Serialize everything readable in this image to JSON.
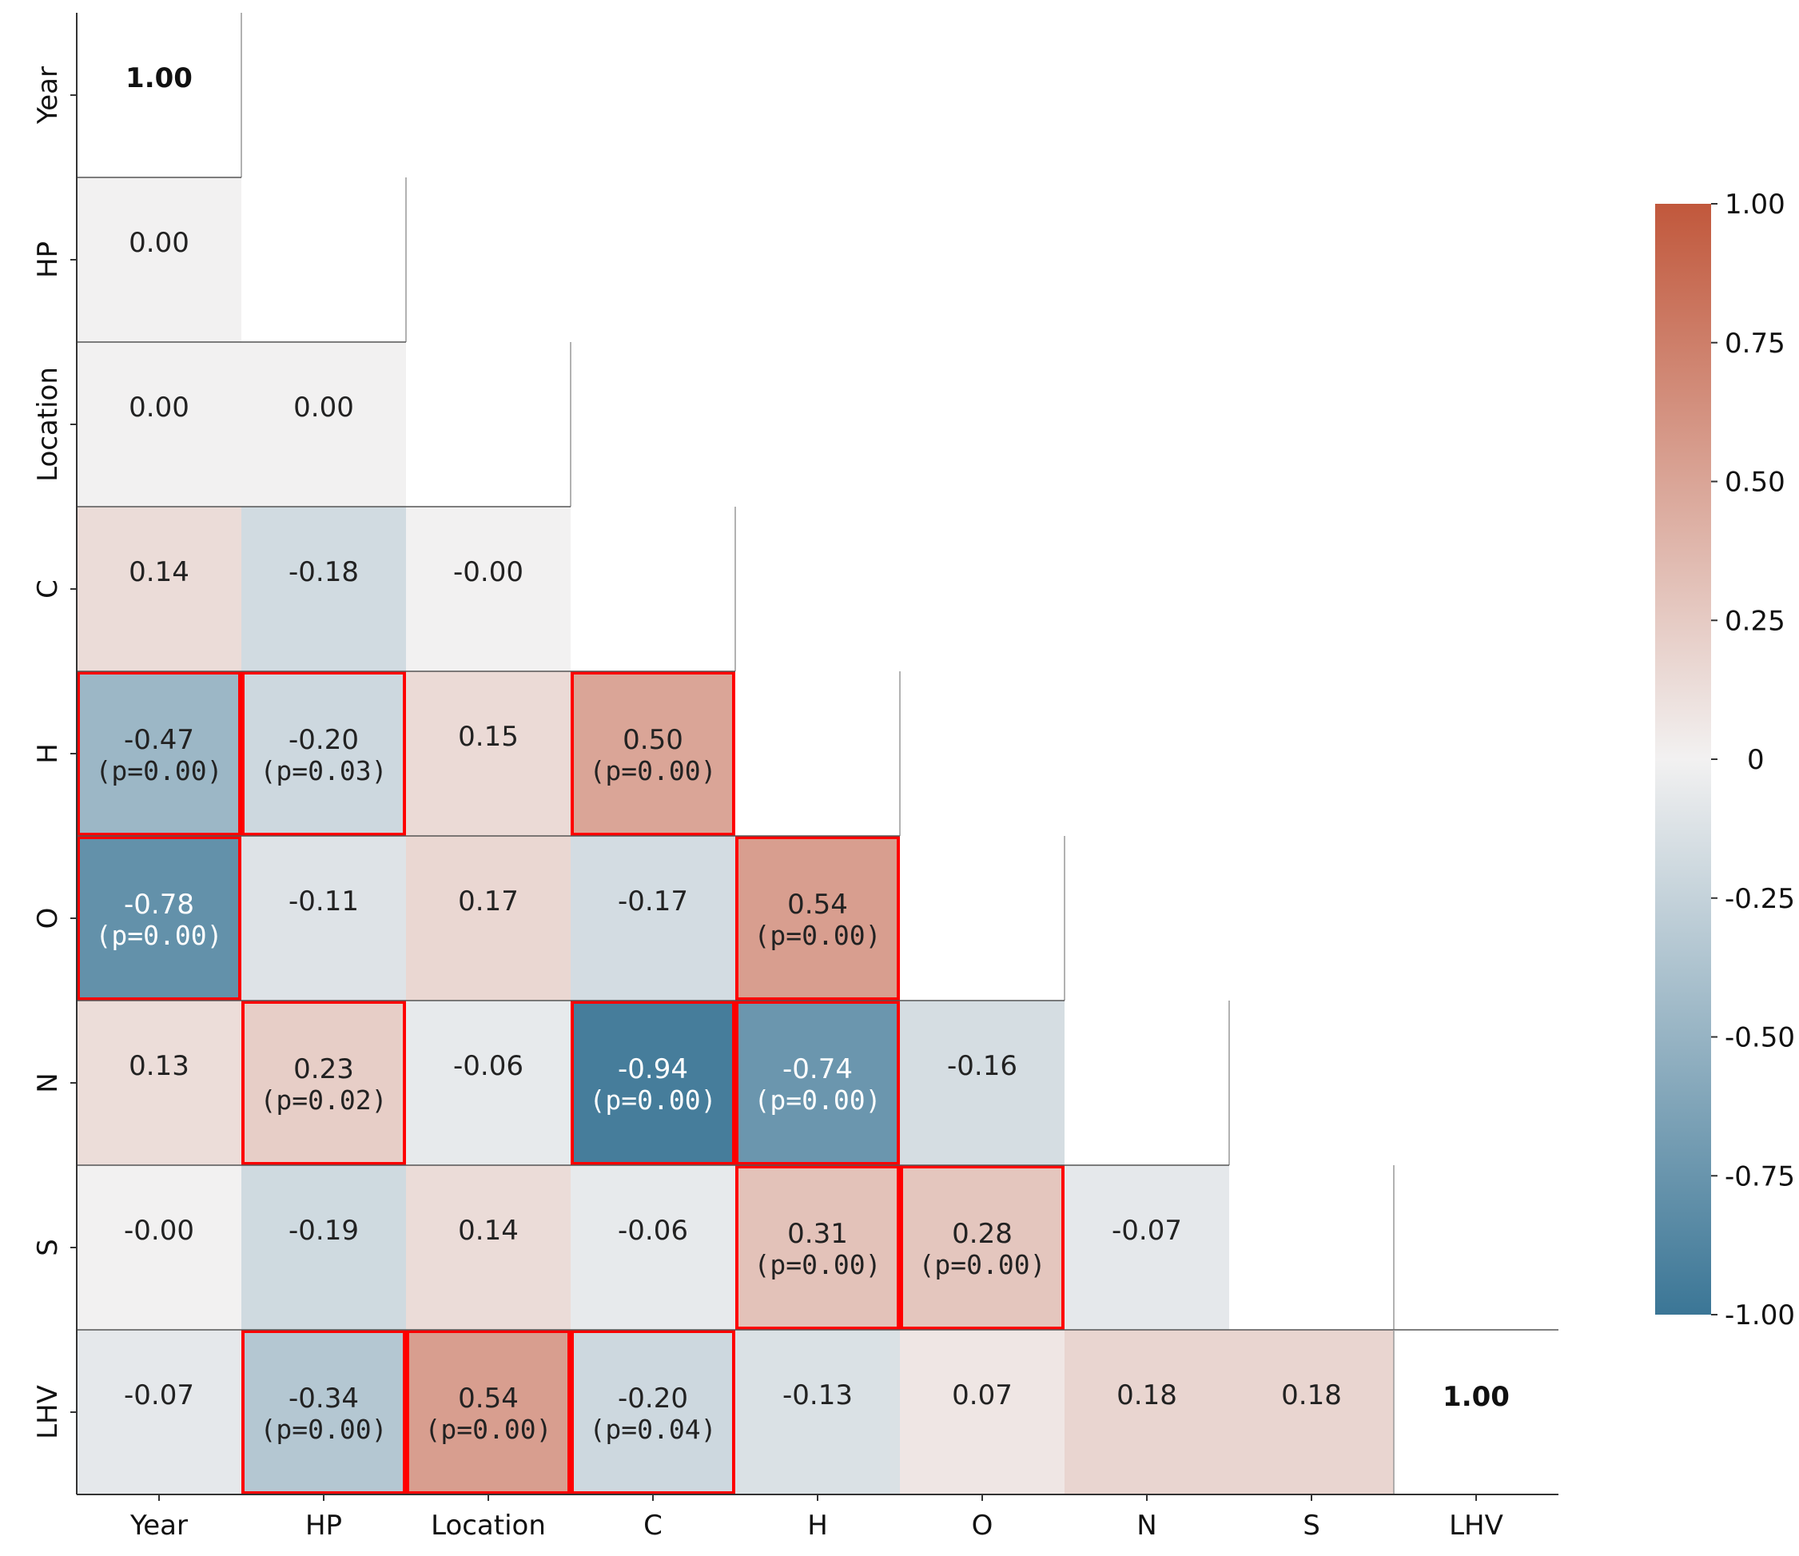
{
  "chart_data": {
    "type": "heatmap",
    "title": "",
    "variables": [
      "Year",
      "HP",
      "Location",
      "C",
      "H",
      "O",
      "N",
      "S",
      "LHV"
    ],
    "cells": [
      {
        "row": "Year",
        "col": "Year",
        "value": 1.0,
        "label": "1.00",
        "p": null,
        "highlighted": false
      },
      {
        "row": "HP",
        "col": "Year",
        "value": 0.0,
        "label": "0.00",
        "p": null,
        "highlighted": false
      },
      {
        "row": "Location",
        "col": "Year",
        "value": 0.0,
        "label": "0.00",
        "p": null,
        "highlighted": false
      },
      {
        "row": "Location",
        "col": "HP",
        "value": 0.0,
        "label": "0.00",
        "p": null,
        "highlighted": false
      },
      {
        "row": "C",
        "col": "Year",
        "value": 0.14,
        "label": "0.14",
        "p": null,
        "highlighted": false
      },
      {
        "row": "C",
        "col": "HP",
        "value": -0.18,
        "label": "-0.18",
        "p": null,
        "highlighted": false
      },
      {
        "row": "C",
        "col": "Location",
        "value": -0.0,
        "label": "-0.00",
        "p": null,
        "highlighted": false
      },
      {
        "row": "H",
        "col": "Year",
        "value": -0.47,
        "label": "-0.47",
        "p": "(p=0.00)",
        "highlighted": true
      },
      {
        "row": "H",
        "col": "HP",
        "value": -0.2,
        "label": "-0.20",
        "p": "(p=0.03)",
        "highlighted": true
      },
      {
        "row": "H",
        "col": "Location",
        "value": 0.15,
        "label": "0.15",
        "p": null,
        "highlighted": false
      },
      {
        "row": "H",
        "col": "C",
        "value": 0.5,
        "label": "0.50",
        "p": "(p=0.00)",
        "highlighted": true
      },
      {
        "row": "O",
        "col": "Year",
        "value": -0.78,
        "label": "-0.78",
        "p": "(p=0.00)",
        "highlighted": true
      },
      {
        "row": "O",
        "col": "HP",
        "value": -0.11,
        "label": "-0.11",
        "p": null,
        "highlighted": false
      },
      {
        "row": "O",
        "col": "Location",
        "value": 0.17,
        "label": "0.17",
        "p": null,
        "highlighted": false
      },
      {
        "row": "O",
        "col": "C",
        "value": -0.17,
        "label": "-0.17",
        "p": null,
        "highlighted": false
      },
      {
        "row": "O",
        "col": "H",
        "value": 0.54,
        "label": "0.54",
        "p": "(p=0.00)",
        "highlighted": true
      },
      {
        "row": "N",
        "col": "Year",
        "value": 0.13,
        "label": "0.13",
        "p": null,
        "highlighted": false
      },
      {
        "row": "N",
        "col": "HP",
        "value": 0.23,
        "label": "0.23",
        "p": "(p=0.02)",
        "highlighted": true
      },
      {
        "row": "N",
        "col": "Location",
        "value": -0.06,
        "label": "-0.06",
        "p": null,
        "highlighted": false
      },
      {
        "row": "N",
        "col": "C",
        "value": -0.94,
        "label": "-0.94",
        "p": "(p=0.00)",
        "highlighted": true
      },
      {
        "row": "N",
        "col": "H",
        "value": -0.74,
        "label": "-0.74",
        "p": "(p=0.00)",
        "highlighted": true
      },
      {
        "row": "N",
        "col": "O",
        "value": -0.16,
        "label": "-0.16",
        "p": null,
        "highlighted": false
      },
      {
        "row": "S",
        "col": "Year",
        "value": -0.0,
        "label": "-0.00",
        "p": null,
        "highlighted": false
      },
      {
        "row": "S",
        "col": "HP",
        "value": -0.19,
        "label": "-0.19",
        "p": null,
        "highlighted": false
      },
      {
        "row": "S",
        "col": "Location",
        "value": 0.14,
        "label": "0.14",
        "p": null,
        "highlighted": false
      },
      {
        "row": "S",
        "col": "C",
        "value": -0.06,
        "label": "-0.06",
        "p": null,
        "highlighted": false
      },
      {
        "row": "S",
        "col": "H",
        "value": 0.31,
        "label": "0.31",
        "p": "(p=0.00)",
        "highlighted": true
      },
      {
        "row": "S",
        "col": "O",
        "value": 0.28,
        "label": "0.28",
        "p": "(p=0.00)",
        "highlighted": true
      },
      {
        "row": "S",
        "col": "N",
        "value": -0.07,
        "label": "-0.07",
        "p": null,
        "highlighted": false
      },
      {
        "row": "LHV",
        "col": "Year",
        "value": -0.07,
        "label": "-0.07",
        "p": null,
        "highlighted": false
      },
      {
        "row": "LHV",
        "col": "HP",
        "value": -0.34,
        "label": "-0.34",
        "p": "(p=0.00)",
        "highlighted": true
      },
      {
        "row": "LHV",
        "col": "Location",
        "value": 0.54,
        "label": "0.54",
        "p": "(p=0.00)",
        "highlighted": true
      },
      {
        "row": "LHV",
        "col": "C",
        "value": -0.2,
        "label": "-0.20",
        "p": "(p=0.04)",
        "highlighted": true
      },
      {
        "row": "LHV",
        "col": "H",
        "value": -0.13,
        "label": "-0.13",
        "p": null,
        "highlighted": false
      },
      {
        "row": "LHV",
        "col": "O",
        "value": 0.07,
        "label": "0.07",
        "p": null,
        "highlighted": false
      },
      {
        "row": "LHV",
        "col": "N",
        "value": 0.18,
        "label": "0.18",
        "p": null,
        "highlighted": false
      },
      {
        "row": "LHV",
        "col": "S",
        "value": 0.18,
        "label": "0.18",
        "p": null,
        "highlighted": false
      },
      {
        "row": "LHV",
        "col": "LHV",
        "value": 1.0,
        "label": "1.00",
        "p": null,
        "highlighted": false
      }
    ],
    "colorbar": {
      "range": [
        -1.0,
        1.0
      ],
      "ticks": [
        {
          "value": 1.0,
          "label": "1.00"
        },
        {
          "value": 0.75,
          "label": "0.75"
        },
        {
          "value": 0.5,
          "label": "0.50"
        },
        {
          "value": 0.25,
          "label": "0.25"
        },
        {
          "value": 0.0,
          "label": "0"
        },
        {
          "value": -0.25,
          "label": "-0.25"
        },
        {
          "value": -0.5,
          "label": "-0.50"
        },
        {
          "value": -0.75,
          "label": "-0.75"
        },
        {
          "value": -1.0,
          "label": "-1.00"
        }
      ],
      "colors": {
        "low": "#3b7696",
        "mid": "#f2f1f1",
        "high": "#c1583c"
      }
    },
    "highlight_color": "#ff0000"
  }
}
